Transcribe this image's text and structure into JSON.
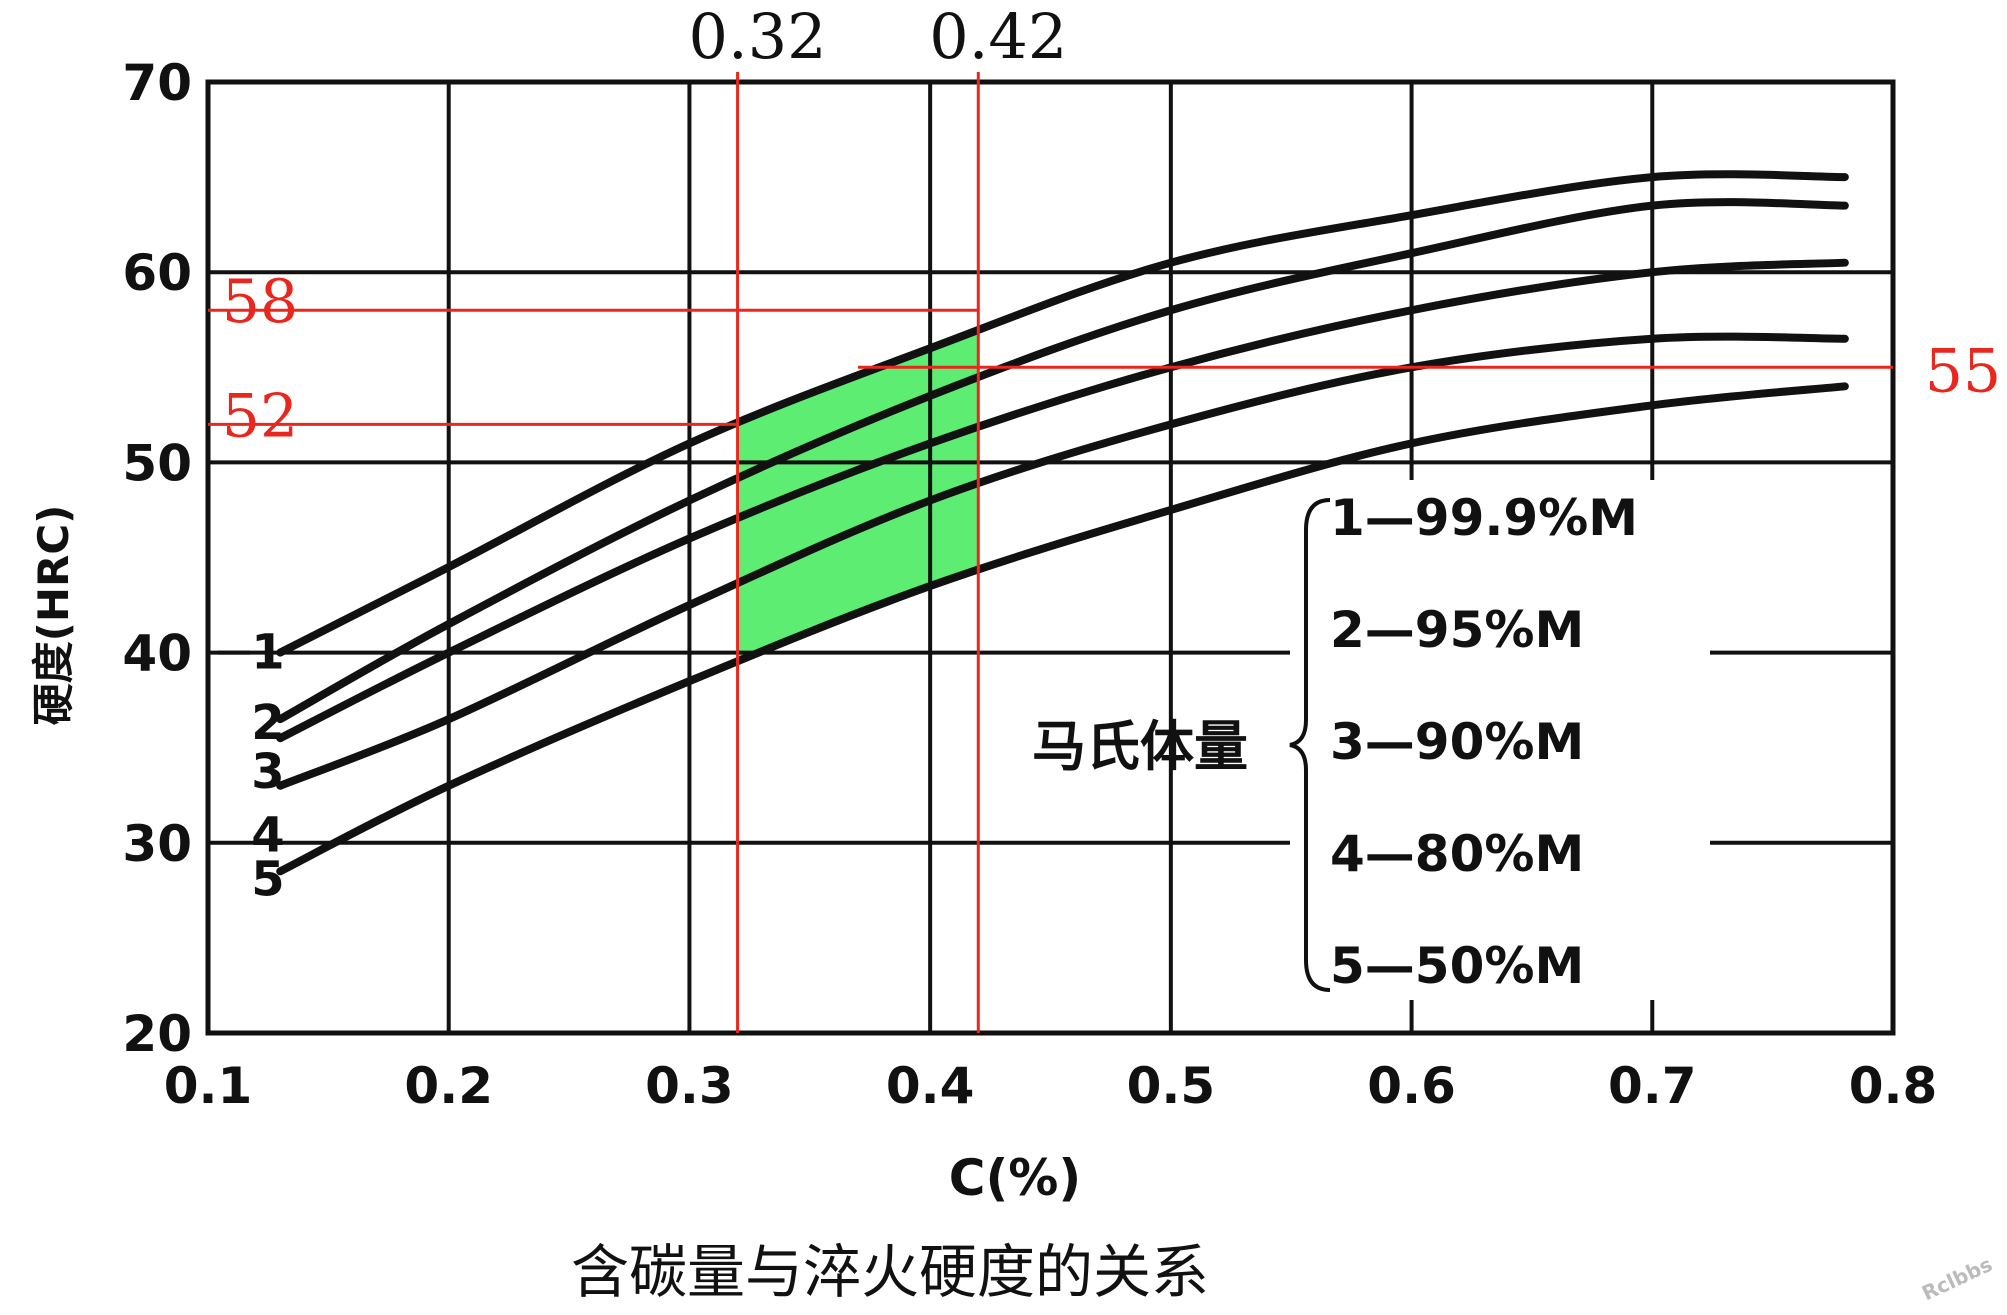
{
  "chart_data": {
    "type": "line",
    "title": "含碳量与淬火硬度的关系",
    "xlabel": "C(%)",
    "ylabel": "硬度(HRC)",
    "xlim": [
      0.1,
      0.8
    ],
    "ylim": [
      20,
      70
    ],
    "x_ticks": [
      "0.1",
      "0.2",
      "0.3",
      "0.4",
      "0.5",
      "0.6",
      "0.7",
      "0.8"
    ],
    "y_ticks": [
      "20",
      "30",
      "40",
      "50",
      "60",
      "70"
    ],
    "grid": true,
    "series": [
      {
        "name": "1",
        "legend": "1—99.9%M",
        "x": [
          0.13,
          0.2,
          0.3,
          0.4,
          0.5,
          0.6,
          0.7,
          0.78
        ],
        "y": [
          40,
          44.5,
          51,
          56,
          60.5,
          63,
          65,
          65
        ]
      },
      {
        "name": "2",
        "legend": "2—95%M",
        "x": [
          0.13,
          0.2,
          0.3,
          0.4,
          0.5,
          0.6,
          0.7,
          0.78
        ],
        "y": [
          36.5,
          41.5,
          48,
          53.5,
          58,
          61,
          63.5,
          63.5
        ]
      },
      {
        "name": "3",
        "legend": "3—90%M",
        "x": [
          0.13,
          0.2,
          0.3,
          0.4,
          0.5,
          0.6,
          0.7,
          0.78
        ],
        "y": [
          35.5,
          40,
          46,
          51,
          55,
          58,
          60,
          60.5
        ]
      },
      {
        "name": "4",
        "legend": "4—80%M",
        "x": [
          0.13,
          0.2,
          0.3,
          0.4,
          0.5,
          0.6,
          0.7,
          0.78
        ],
        "y": [
          33,
          36.5,
          42.5,
          48,
          52,
          55,
          56.5,
          56.5
        ]
      },
      {
        "name": "5",
        "legend": "5—50%M",
        "x": [
          0.13,
          0.2,
          0.3,
          0.4,
          0.5,
          0.6,
          0.7,
          0.78
        ],
        "y": [
          28.5,
          33,
          38.5,
          43.5,
          47.5,
          51,
          53,
          54
        ]
      }
    ],
    "legend_group_label": "马氏体量",
    "annotations": {
      "vertical_lines": [
        {
          "x": 0.32,
          "label": "0.32"
        },
        {
          "x": 0.42,
          "label": "0.42"
        }
      ],
      "horizontal_lines": [
        {
          "y": 58,
          "label": "58",
          "x_end": 0.42
        },
        {
          "y": 52,
          "label": "52",
          "x_end": 0.32
        },
        {
          "y": 55,
          "label": "55",
          "x_start": 0.37
        }
      ],
      "shaded_region": {
        "x_range": [
          0.32,
          0.42
        ],
        "between_series": [
          "1",
          "5"
        ],
        "color": "#5eed73"
      },
      "line_color": "#e8281e"
    },
    "watermark": "Rclbbs"
  }
}
